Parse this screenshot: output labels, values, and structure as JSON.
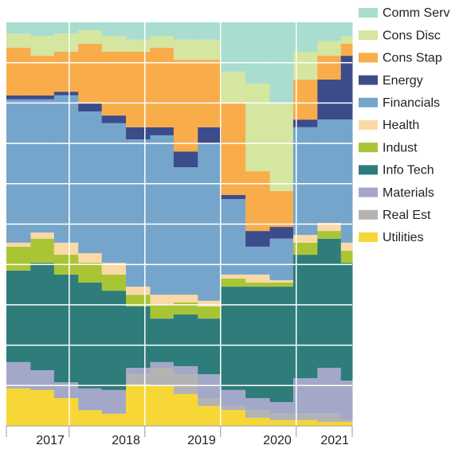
{
  "chart_data": {
    "type": "stacked_step_area",
    "x": [
      2017.17,
      2017.49,
      2017.8,
      2018.12,
      2018.43,
      2018.75,
      2019.07,
      2019.38,
      2019.7,
      2020.01,
      2020.33,
      2020.65,
      2020.96,
      2021.28,
      2021.59
    ],
    "xlim": [
      2017.17,
      2021.74
    ],
    "xticks": [
      {
        "value": 2017.75,
        "label": "2017"
      },
      {
        "value": 2018.75,
        "label": "2018"
      },
      {
        "value": 2019.75,
        "label": "2019"
      },
      {
        "value": 2020.75,
        "label": "2020"
      },
      {
        "value": 2021.51,
        "label": "2021"
      }
    ],
    "grid_x": [
      2018,
      2019,
      2020,
      2021
    ],
    "ylim": [
      0,
      100
    ],
    "ygrid": [
      10,
      20,
      30,
      40,
      50,
      60,
      70,
      80,
      90
    ],
    "legend": "right",
    "series": [
      {
        "name": "Comm Serv",
        "color": "#a8ddd0",
        "values": [
          2.8,
          3.4,
          2.8,
          2,
          3.4,
          4.3,
          3.4,
          4.3,
          4.3,
          12.2,
          15.2,
          20.1,
          7.3,
          4.7,
          3.4
        ]
      },
      {
        "name": "Cons Disc",
        "color": "#d4e6a0",
        "values": [
          3.5,
          4.9,
          4.5,
          3.3,
          3.9,
          3,
          2.9,
          5,
          5,
          7.9,
          21.7,
          21.7,
          6.9,
          3.6,
          1.9
        ]
      },
      {
        "name": "Cons Stap",
        "color": "#f9ad4a",
        "values": [
          11.8,
          9.8,
          9.9,
          14.8,
          15.8,
          18.7,
          19.7,
          22.7,
          16.7,
          22.7,
          14.8,
          8.9,
          9.9,
          5.9,
          3
        ]
      },
      {
        "name": "Energy",
        "color": "#3c4c8b",
        "values": [
          1,
          1,
          0.9,
          2,
          1.9,
          3,
          2,
          3.9,
          4,
          1,
          3.9,
          2.9,
          1.9,
          9.9,
          15.8
        ]
      },
      {
        "name": "Financials",
        "color": "#76a5cb",
        "values": [
          35.5,
          33,
          36.5,
          35.1,
          34.6,
          36.5,
          39.5,
          31.6,
          39,
          18.7,
          6.9,
          10.3,
          26.7,
          25.6,
          30.5
        ]
      },
      {
        "name": "Health",
        "color": "#fbd9a6",
        "values": [
          1,
          1.5,
          3,
          2.4,
          2.9,
          2,
          2.3,
          1.9,
          1.4,
          1,
          2,
          0.6,
          1.9,
          2,
          2
        ]
      },
      {
        "name": "Indust",
        "color": "#a9c535",
        "values": [
          5.9,
          6,
          4.9,
          4.9,
          4,
          2.9,
          3.6,
          3,
          3,
          2,
          1,
          1,
          3,
          1.9,
          3
        ]
      },
      {
        "name": "Info Tech",
        "color": "#2e7d7b",
        "values": [
          22.7,
          26.6,
          26.7,
          26.2,
          24.6,
          15.2,
          10.8,
          12.8,
          13.8,
          25.6,
          27.6,
          28.6,
          30.6,
          32,
          29.2
        ]
      },
      {
        "name": "Materials",
        "color": "#a4a8c8",
        "values": [
          6.5,
          4.9,
          3.9,
          5.4,
          5.9,
          1.6,
          1.4,
          2,
          5.9,
          4,
          3,
          2.9,
          8.8,
          11.4,
          9.8
        ]
      },
      {
        "name": "Real Est",
        "color": "#b3b3b3",
        "values": [
          0,
          0,
          0,
          0,
          0,
          2.5,
          4.5,
          4.9,
          2,
          1,
          1.9,
          1.6,
          1.6,
          2,
          0.4
        ]
      },
      {
        "name": "Utilities",
        "color": "#f7d736",
        "values": [
          9.3,
          8.9,
          6.9,
          3.9,
          3,
          10.3,
          9.9,
          7.9,
          4.9,
          3.9,
          2,
          1.4,
          1.4,
          1,
          1
        ]
      }
    ]
  }
}
